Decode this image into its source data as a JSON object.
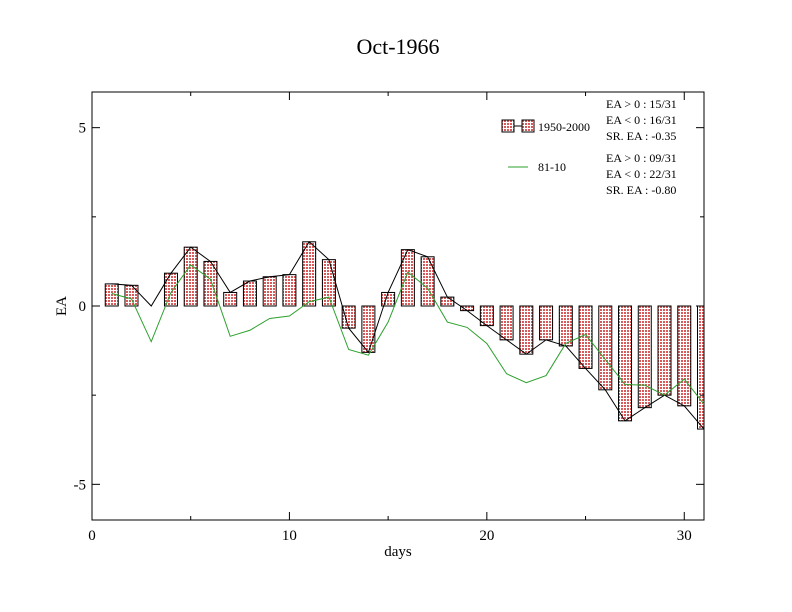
{
  "chart_data": {
    "type": "bar",
    "title": "Oct-1966",
    "xlabel": "days",
    "ylabel": "EA",
    "xlim": [
      0,
      31
    ],
    "ylim": [
      -6,
      6
    ],
    "x_ticks": [
      0,
      10,
      20,
      30
    ],
    "y_ticks": [
      -5,
      0,
      5
    ],
    "x_tick_labels": [
      "0",
      "10",
      "20",
      "30"
    ],
    "y_tick_labels": [
      "-5",
      "0",
      "5"
    ],
    "grid": false,
    "legend_position": "top-right",
    "x": [
      1,
      2,
      3,
      4,
      5,
      6,
      7,
      8,
      9,
      10,
      11,
      12,
      13,
      14,
      15,
      16,
      17,
      18,
      19,
      20,
      21,
      22,
      23,
      24,
      25,
      26,
      27,
      28,
      29,
      30,
      31
    ],
    "series": [
      {
        "name": "1950-2000",
        "kind": "bar",
        "color": "#e07070",
        "values": [
          0.62,
          0.58,
          0.0,
          0.92,
          1.65,
          1.25,
          0.38,
          0.7,
          0.82,
          0.88,
          1.8,
          1.3,
          -0.62,
          -1.3,
          0.38,
          1.58,
          1.38,
          0.25,
          -0.13,
          -0.55,
          -0.95,
          -1.35,
          -0.95,
          -1.12,
          -1.75,
          -2.35,
          -3.22,
          -2.85,
          -2.5,
          -2.8,
          -3.45
        ]
      },
      {
        "name": "81-10",
        "kind": "line",
        "color": "#2ca02c",
        "values": [
          0.35,
          0.2,
          -1.0,
          0.38,
          1.15,
          0.75,
          -0.85,
          -0.68,
          -0.35,
          -0.28,
          0.12,
          0.25,
          -1.22,
          -1.38,
          -0.45,
          0.95,
          0.5,
          -0.45,
          -0.6,
          -1.05,
          -1.9,
          -2.15,
          -1.95,
          -1.05,
          -0.8,
          -1.5,
          -2.2,
          -2.22,
          -2.5,
          -2.05,
          -2.75
        ]
      }
    ],
    "stats": {
      "1950-2000": [
        "EA > 0 : 15/31",
        "EA < 0 : 16/31",
        "SR. EA : -0.35"
      ],
      "81-10": [
        "EA > 0 : 09/31",
        "EA < 0 : 22/31",
        "SR. EA : -0.80"
      ]
    }
  }
}
